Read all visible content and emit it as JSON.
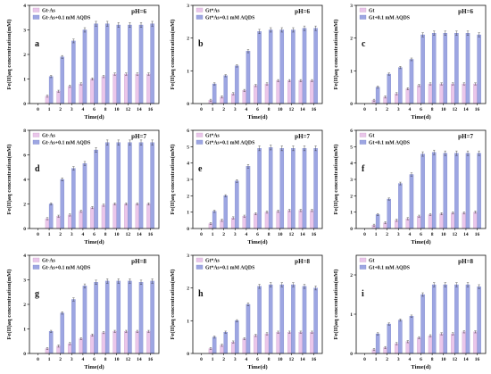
{
  "figure": {
    "xlabel": "Time(d)",
    "ylabel": "Fe(II)aq concentration(mM)"
  },
  "colors": {
    "series1": "#eac6ea",
    "series2": "#9da6e2",
    "frame": "#111111"
  },
  "chart_data": [
    {
      "type": "bar",
      "panel": "a",
      "ph": "pH=6",
      "legend": [
        "Gt-As",
        "Gt-As+0.1 mM AQDS"
      ],
      "ylim": [
        0,
        4
      ],
      "yticks": [
        0,
        1,
        2,
        3,
        4
      ],
      "x": [
        0,
        1,
        2,
        3,
        4,
        6,
        8,
        10,
        12,
        14,
        16
      ],
      "series": [
        {
          "name": "Gt-As",
          "values": [
            0,
            0.3,
            0.5,
            0.7,
            0.8,
            1.0,
            1.1,
            1.2,
            1.2,
            1.2,
            1.2
          ]
        },
        {
          "name": "Gt-As+0.1 mM AQDS",
          "values": [
            0,
            1.1,
            1.9,
            2.55,
            3.0,
            3.25,
            3.25,
            3.2,
            3.2,
            3.2,
            3.25
          ]
        }
      ]
    },
    {
      "type": "bar",
      "panel": "b",
      "ph": "pH=6",
      "legend": [
        "Gt*As",
        "Gt*As+0.1 mM AQDS"
      ],
      "ylim": [
        0,
        3
      ],
      "yticks": [
        0,
        1,
        2,
        3
      ],
      "x": [
        0,
        1,
        2,
        3,
        4,
        6,
        8,
        10,
        12,
        14,
        16
      ],
      "series": [
        {
          "name": "Gt*As",
          "values": [
            0,
            0.1,
            0.2,
            0.3,
            0.4,
            0.55,
            0.6,
            0.7,
            0.7,
            0.7,
            0.7
          ]
        },
        {
          "name": "Gt*As+0.1 mM AQDS",
          "values": [
            0,
            0.6,
            0.85,
            1.15,
            1.6,
            2.2,
            2.25,
            2.25,
            2.25,
            2.3,
            2.3
          ]
        }
      ]
    },
    {
      "type": "bar",
      "panel": "c",
      "ph": "pH=6",
      "legend": [
        "Gt",
        "Gt+0.1 mM AQDS"
      ],
      "ylim": [
        0,
        3
      ],
      "yticks": [
        0,
        1,
        2,
        3
      ],
      "x": [
        0,
        1,
        2,
        3,
        4,
        6,
        8,
        10,
        12,
        14,
        16
      ],
      "series": [
        {
          "name": "Gt",
          "values": [
            0,
            0.1,
            0.2,
            0.3,
            0.45,
            0.55,
            0.6,
            0.6,
            0.6,
            0.6,
            0.6
          ]
        },
        {
          "name": "Gt+0.1 mM AQDS",
          "values": [
            0,
            0.5,
            0.9,
            1.1,
            1.35,
            2.1,
            2.15,
            2.15,
            2.15,
            2.15,
            2.1
          ]
        }
      ]
    },
    {
      "type": "bar",
      "panel": "d",
      "ph": "pH=7",
      "legend": [
        "Gt-As",
        "Gt-As+0.1 mM AQDS"
      ],
      "ylim": [
        0,
        8
      ],
      "yticks": [
        0,
        2,
        4,
        6,
        8
      ],
      "x": [
        0,
        1,
        2,
        3,
        4,
        6,
        8,
        10,
        12,
        14,
        16
      ],
      "series": [
        {
          "name": "Gt-As",
          "values": [
            0,
            0.8,
            1.0,
            1.1,
            1.4,
            1.7,
            1.9,
            2.0,
            2.0,
            2.0,
            2.0
          ]
        },
        {
          "name": "Gt-As+0.1 mM AQDS",
          "values": [
            0,
            2.0,
            4.0,
            4.9,
            5.3,
            6.4,
            7.0,
            7.0,
            7.0,
            7.0,
            7.0
          ]
        }
      ]
    },
    {
      "type": "bar",
      "panel": "e",
      "ph": "pH=7",
      "legend": [
        "Gt*As",
        "Gt*As+0.1 mM AQDS"
      ],
      "ylim": [
        0,
        6
      ],
      "yticks": [
        0,
        1,
        2,
        3,
        4,
        5,
        6
      ],
      "x": [
        0,
        1,
        2,
        3,
        4,
        6,
        8,
        10,
        12,
        14,
        16
      ],
      "series": [
        {
          "name": "Gt*As",
          "values": [
            0,
            0.3,
            0.5,
            0.65,
            0.75,
            0.9,
            1.0,
            1.05,
            1.1,
            1.1,
            1.1
          ]
        },
        {
          "name": "Gt*As+0.1 mM AQDS",
          "values": [
            0,
            1.05,
            2.0,
            2.9,
            3.8,
            4.9,
            4.95,
            4.9,
            4.9,
            4.9,
            4.9
          ]
        }
      ]
    },
    {
      "type": "bar",
      "panel": "f",
      "ph": "pH=7",
      "legend": [
        "Gt",
        "Gt+0.1 mM AQDS"
      ],
      "ylim": [
        0,
        6
      ],
      "yticks": [
        0,
        1,
        2,
        3,
        4,
        5,
        6
      ],
      "x": [
        0,
        1,
        2,
        3,
        4,
        6,
        8,
        10,
        12,
        14,
        16
      ],
      "series": [
        {
          "name": "Gt",
          "values": [
            0,
            0.2,
            0.35,
            0.5,
            0.6,
            0.75,
            0.85,
            0.9,
            0.95,
            0.95,
            1.0
          ]
        },
        {
          "name": "Gt+0.1 mM AQDS",
          "values": [
            0,
            0.85,
            1.8,
            2.75,
            3.3,
            4.55,
            4.65,
            4.6,
            4.6,
            4.6,
            4.6
          ]
        }
      ]
    },
    {
      "type": "bar",
      "panel": "g",
      "ph": "pH=8",
      "legend": [
        "Gt-As",
        "Gt-As+0.1 mM AQDS"
      ],
      "ylim": [
        0,
        4
      ],
      "yticks": [
        0,
        1,
        2,
        3,
        4
      ],
      "x": [
        0,
        1,
        2,
        3,
        4,
        6,
        8,
        10,
        12,
        14,
        16
      ],
      "series": [
        {
          "name": "Gt-As",
          "values": [
            0,
            0.2,
            0.3,
            0.4,
            0.6,
            0.75,
            0.85,
            0.9,
            0.9,
            0.9,
            0.9
          ]
        },
        {
          "name": "Gt-As+0.1 mM AQDS",
          "values": [
            0,
            0.9,
            1.65,
            2.2,
            2.75,
            2.9,
            2.95,
            2.95,
            2.95,
            2.9,
            2.95
          ]
        }
      ]
    },
    {
      "type": "bar",
      "panel": "h",
      "ph": "pH=8",
      "legend": [
        "Gt*As",
        "Gt*As+0.1 mM AQDS"
      ],
      "ylim": [
        0,
        3
      ],
      "yticks": [
        0,
        1,
        2,
        3
      ],
      "x": [
        0,
        1,
        2,
        3,
        4,
        6,
        8,
        10,
        12,
        14,
        16
      ],
      "series": [
        {
          "name": "Gt*As",
          "values": [
            0,
            0.15,
            0.25,
            0.35,
            0.45,
            0.55,
            0.6,
            0.65,
            0.65,
            0.65,
            0.65
          ]
        },
        {
          "name": "Gt*As+0.1 mM AQDS",
          "values": [
            0,
            0.5,
            0.65,
            1.0,
            1.5,
            2.05,
            2.1,
            2.1,
            2.1,
            2.05,
            2.0
          ]
        }
      ]
    },
    {
      "type": "bar",
      "panel": "i",
      "ph": "pH=8",
      "legend": [
        "Gt",
        "Gt+0.1 mM AQDS"
      ],
      "ylim": [
        0,
        2.5
      ],
      "yticks": [
        0,
        1,
        2
      ],
      "x": [
        0,
        1,
        2,
        3,
        4,
        6,
        8,
        10,
        12,
        14,
        16
      ],
      "series": [
        {
          "name": "Gt",
          "values": [
            0,
            0.1,
            0.15,
            0.25,
            0.3,
            0.4,
            0.45,
            0.5,
            0.5,
            0.55,
            0.55
          ]
        },
        {
          "name": "Gt+0.1 mM AQDS",
          "values": [
            0,
            0.5,
            0.75,
            0.85,
            0.95,
            1.5,
            1.75,
            1.75,
            1.75,
            1.75,
            1.7
          ]
        }
      ]
    }
  ]
}
